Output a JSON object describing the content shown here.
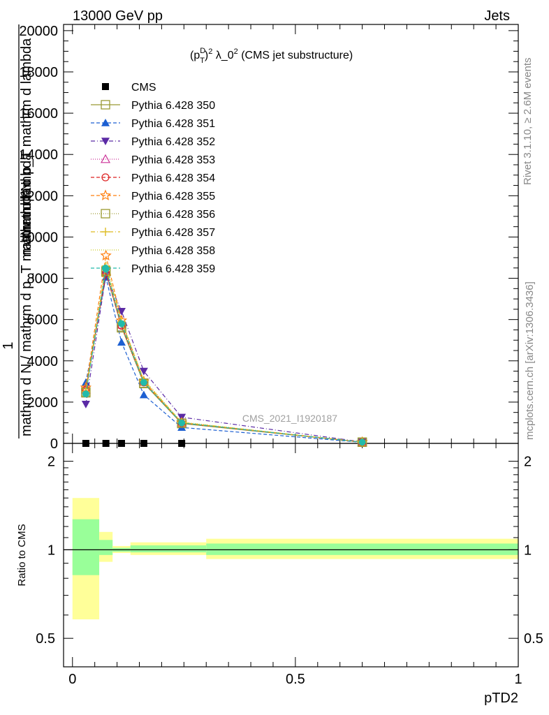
{
  "header": {
    "left": "13000 GeV pp",
    "right": "Jets"
  },
  "side_labels": {
    "top": "Rivet 3.1.10, ≥ 2.6M events",
    "bottom": "mcplots.cern.ch [arXiv:1306.3436]"
  },
  "main_panel": {
    "title": "(p_T^D)^2 λ_0^2 (CMS jet substructure)",
    "title_parts": {
      "open": "(p",
      "sup1": "D",
      "sub1": "T",
      "mid": ")",
      "sup2": "2",
      "rest": " λ_0",
      "sup3": "2",
      "tail": " (CMS jet substructure)"
    },
    "watermark": "CMS_2021_I1920187",
    "ylabel_outer": "mathrm d²N",
    "ylabel_outer_1": "1",
    "ylabel_inner": "mathrm d p_T mathrm d lambda",
    "ylabel_denom": "mathrm d N / mathrm d p_T mathrm d lambda",
    "yticks": [
      "0",
      "2000",
      "4000",
      "6000",
      "8000",
      "10000",
      "12000",
      "14000",
      "16000",
      "18000",
      "20000"
    ]
  },
  "ratio_panel": {
    "ylabel": "Ratio to CMS",
    "yticks": [
      "0.5",
      "1",
      "2"
    ]
  },
  "x_axis": {
    "label": "pTD2",
    "ticks": [
      "0",
      "0.5",
      "1"
    ]
  },
  "chart_data": {
    "type": "line",
    "x": [
      0.03,
      0.075,
      0.11,
      0.16,
      0.245,
      0.65
    ],
    "xlim": [
      -0.02,
      1.0
    ],
    "ylim": [
      0,
      20300
    ],
    "ratio_ylim": [
      0.4,
      2.3
    ],
    "ratio_scale": "log",
    "ratio_x_bins": [
      [
        0.0,
        0.06
      ],
      [
        0.06,
        0.09
      ],
      [
        0.09,
        0.13
      ],
      [
        0.13,
        0.3
      ],
      [
        0.3,
        1.0
      ]
    ],
    "ratio_bands": {
      "yellow": [
        [
          0.58,
          1.5
        ],
        [
          0.91,
          1.15
        ],
        [
          0.975,
          1.03
        ],
        [
          0.96,
          1.06
        ],
        [
          0.93,
          1.09
        ]
      ],
      "green": [
        [
          0.82,
          1.27
        ],
        [
          0.96,
          1.08
        ],
        [
          0.985,
          1.015
        ],
        [
          0.98,
          1.035
        ],
        [
          0.96,
          1.05
        ]
      ],
      "colors": {
        "yellow": "#ffff99",
        "green": "#99ff99"
      }
    },
    "series": [
      {
        "name": "CMS",
        "color": "#000000",
        "marker": "square-filled",
        "dash": "none",
        "values": [
          0,
          0,
          0,
          0,
          0,
          0
        ]
      },
      {
        "name": "Pythia 6.428 350",
        "color": "#999933",
        "marker": "square-open",
        "dash": "solid",
        "values": [
          2500,
          8300,
          5650,
          2920,
          960,
          60
        ]
      },
      {
        "name": "Pythia 6.428 351",
        "color": "#1c5fd2",
        "marker": "triangle-up-filled",
        "dash": "5,3",
        "values": [
          2950,
          8050,
          4900,
          2350,
          770,
          50
        ]
      },
      {
        "name": "Pythia 6.428 352",
        "color": "#5b2aa5",
        "marker": "triangle-down-filled",
        "dash": "6,3,1,3",
        "values": [
          1900,
          8150,
          6400,
          3500,
          1270,
          70
        ]
      },
      {
        "name": "Pythia 6.428 353",
        "color": "#cc3399",
        "marker": "triangle-up-open",
        "dash": "1,2",
        "values": [
          2600,
          8400,
          5750,
          3000,
          1000,
          60
        ]
      },
      {
        "name": "Pythia 6.428 354",
        "color": "#dd2222",
        "marker": "circle-open",
        "dash": "5,3",
        "values": [
          2600,
          8250,
          5700,
          2950,
          980,
          60
        ]
      },
      {
        "name": "Pythia 6.428 355",
        "color": "#ff7f0e",
        "marker": "star-open",
        "dash": "5,3",
        "values": [
          2700,
          9100,
          5950,
          3000,
          1000,
          60
        ]
      },
      {
        "name": "Pythia 6.428 356",
        "color": "#9c9a30",
        "marker": "square-open",
        "dash": "1,2",
        "values": [
          2450,
          8350,
          5600,
          2900,
          980,
          60
        ]
      },
      {
        "name": "Pythia 6.428 357",
        "color": "#ddbb22",
        "marker": "cross",
        "dash": "6,3,1,3",
        "values": [
          2500,
          8600,
          5900,
          3050,
          1020,
          60
        ]
      },
      {
        "name": "Pythia 6.428 358",
        "color": "#cccc22",
        "marker": "none",
        "dash": "1,2",
        "values": [
          2550,
          8750,
          5950,
          3100,
          1030,
          60
        ]
      },
      {
        "name": "Pythia 6.428 359",
        "color": "#22bbaa",
        "marker": "circle-filled",
        "dash": "5,3",
        "values": [
          2400,
          8450,
          5800,
          2950,
          990,
          60
        ]
      }
    ]
  }
}
